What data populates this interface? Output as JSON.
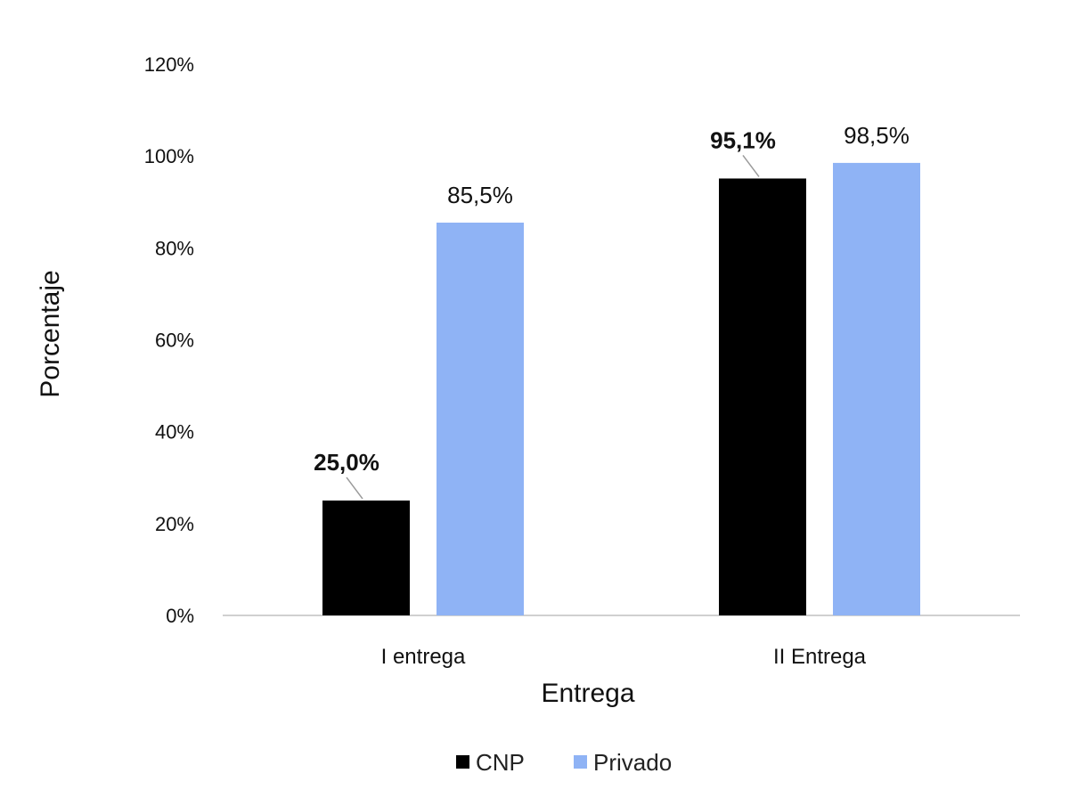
{
  "chart_data": {
    "type": "bar",
    "title": "",
    "xlabel": "Entrega",
    "ylabel": "Porcentaje",
    "categories": [
      "I entrega",
      "II Entrega"
    ],
    "series": [
      {
        "name": "CNP",
        "color": "#000000",
        "values": [
          25.0,
          95.1
        ],
        "labels": [
          "25,0%",
          "95,1%"
        ],
        "label_style": "bold"
      },
      {
        "name": "Privado",
        "color": "#8fb3f5",
        "values": [
          85.5,
          98.5
        ],
        "labels": [
          "85,5%",
          "98,5%"
        ],
        "label_style": "normal"
      }
    ],
    "ylim": [
      0,
      120
    ],
    "yticks": [
      0,
      20,
      40,
      60,
      80,
      100,
      120
    ],
    "ytick_labels": [
      "0%",
      "20%",
      "40%",
      "60%",
      "80%",
      "100%",
      "120%"
    ],
    "grid": false,
    "legend": "bottom"
  }
}
